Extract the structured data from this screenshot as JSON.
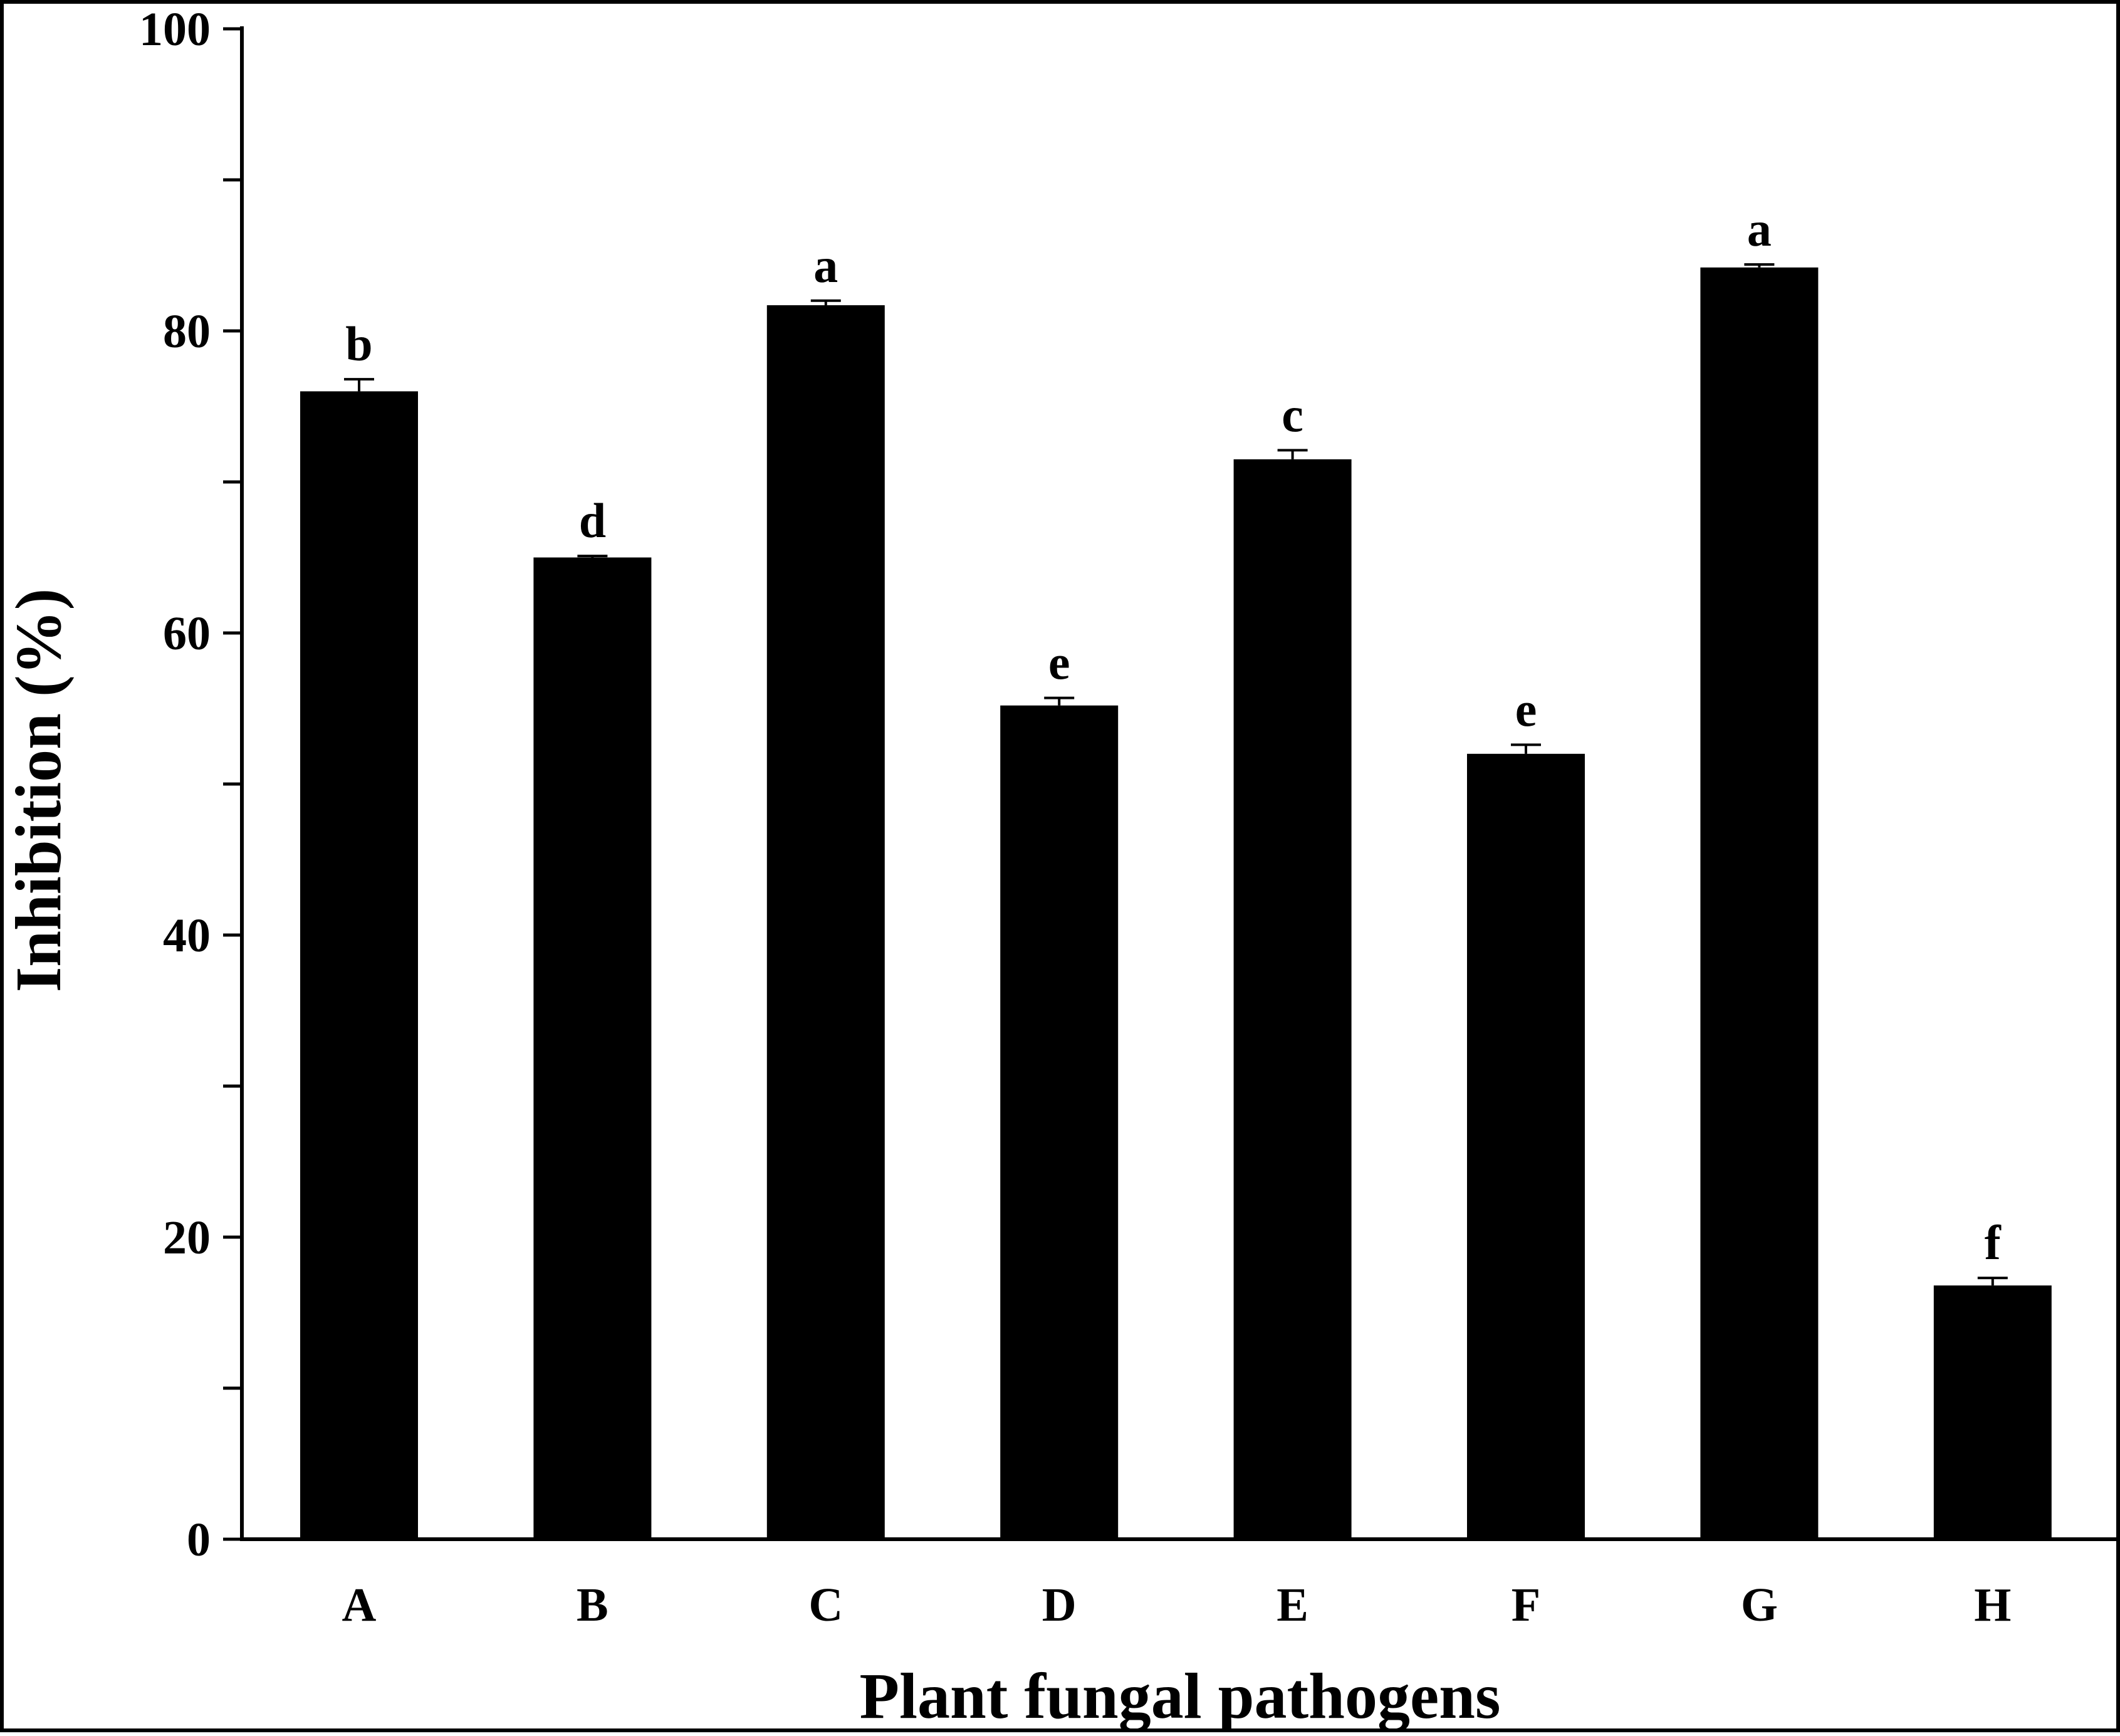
{
  "chart_data": {
    "type": "bar",
    "title": "",
    "xlabel": "Plant fungal pathogens",
    "ylabel": "Inhibition (%)",
    "ylim": [
      0,
      100
    ],
    "y_ticks": [
      "0",
      "20",
      "40",
      "60",
      "80",
      "100"
    ],
    "y_minor_step": 10,
    "categories": [
      "A",
      "B",
      "C",
      "D",
      "E",
      "F",
      "G",
      "H"
    ],
    "values": [
      76.0,
      65.0,
      81.7,
      55.2,
      71.5,
      52.0,
      84.2,
      16.8
    ],
    "errors": [
      0.8,
      0.1,
      0.3,
      0.5,
      0.6,
      0.6,
      0.2,
      0.5
    ],
    "significance": [
      "b",
      "d",
      "a",
      "e",
      "c",
      "e",
      "a",
      "f"
    ],
    "bar_color": "#000000",
    "grid": false,
    "legend": "none"
  }
}
